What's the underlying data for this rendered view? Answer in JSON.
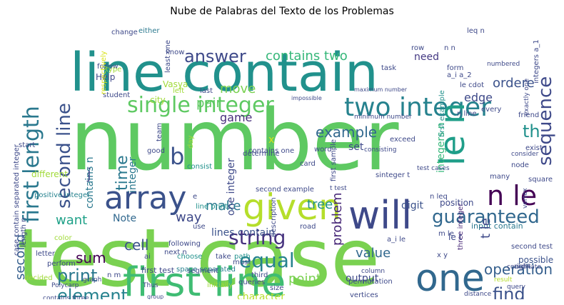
{
  "title": "Nube de Palabras del Texto de los Problemas",
  "words": [
    {
      "text": "number",
      "color": "#5ec962"
    },
    {
      "text": "test case",
      "color": "#7ad151"
    },
    {
      "text": "line contain",
      "color": "#21918c"
    },
    {
      "text": "first line",
      "color": "#3fbc73"
    },
    {
      "text": "array",
      "color": "#3b528b"
    },
    {
      "text": "given",
      "color": "#b5de2b"
    },
    {
      "text": "one",
      "color": "#31688e"
    },
    {
      "text": "will",
      "color": "#3e4989"
    },
    {
      "text": "single integer",
      "color": "#5ec962"
    },
    {
      "text": "two integer",
      "color": "#26828e"
    },
    {
      "text": "le n",
      "color": "#1f9e89"
    },
    {
      "text": "n le",
      "color": "#440154"
    },
    {
      "text": "first length",
      "color": "#2a788e"
    },
    {
      "text": "second line",
      "color": "#3b528b"
    },
    {
      "text": "guaranteed",
      "color": "#31688e"
    },
    {
      "text": "string",
      "color": "#46327e"
    },
    {
      "text": "equal",
      "color": "#26828e"
    },
    {
      "text": "answer",
      "color": "#3e4989"
    },
    {
      "text": "contains two",
      "color": "#35b779"
    },
    {
      "text": "sequence",
      "color": "#3e4989"
    },
    {
      "text": "element",
      "color": "#26828e"
    },
    {
      "text": "print",
      "color": "#2a788e"
    },
    {
      "text": "find",
      "color": "#3b528b"
    },
    {
      "text": "operation",
      "color": "#355f8d"
    },
    {
      "text": "time",
      "color": "#2a788e"
    },
    {
      "text": "problem",
      "color": "#482878"
    },
    {
      "text": "example",
      "color": "#31688e"
    },
    {
      "text": "b",
      "color": "#3b528b"
    },
    {
      "text": "th",
      "color": "#21918c"
    },
    {
      "text": "cell",
      "color": "#3b528b"
    },
    {
      "text": "sum",
      "color": "#440154"
    },
    {
      "text": "tree",
      "color": "#21918c"
    },
    {
      "text": "pair",
      "color": "#5ec962"
    },
    {
      "text": "move",
      "color": "#7ad151"
    },
    {
      "text": "game",
      "color": "#472d7b"
    },
    {
      "text": "want",
      "color": "#1fa188"
    },
    {
      "text": "make",
      "color": "#2a788e"
    },
    {
      "text": "second",
      "color": "#355f8d"
    },
    {
      "text": "way",
      "color": "#3e4989"
    },
    {
      "text": "value",
      "color": "#31688e"
    },
    {
      "text": "point",
      "color": "#7ad151"
    },
    {
      "text": "integer n",
      "color": "#31688e"
    },
    {
      "text": "edge",
      "color": "#3e4989"
    },
    {
      "text": "ordere",
      "color": "#3b528b"
    },
    {
      "text": "need",
      "color": "#443983"
    },
    {
      "text": "set",
      "color": "#3e4989"
    },
    {
      "text": "integers n",
      "color": "#35b779"
    },
    {
      "text": "contains n",
      "color": "#2a788e"
    },
    {
      "text": "one integer",
      "color": "#3e4989"
    },
    {
      "text": "lines contain",
      "color": "#3b528b"
    },
    {
      "text": "character",
      "color": "#b5de2b"
    },
    {
      "text": "output",
      "color": "#3e4989"
    },
    {
      "text": "Note",
      "color": "#31688e"
    },
    {
      "text": "integer",
      "color": "#2a788e"
    },
    {
      "text": "digit",
      "color": "#3b528b"
    },
    {
      "text": "position",
      "color": "#3e4989"
    },
    {
      "text": "input contain",
      "color": "#2a788e"
    },
    {
      "text": "three integer",
      "color": "#482878"
    },
    {
      "text": "possible",
      "color": "#3b528b"
    },
    {
      "text": "second test",
      "color": "#3e4989"
    },
    {
      "text": "first test",
      "color": "#3e4989"
    },
    {
      "text": "space separated",
      "color": "#26828e"
    },
    {
      "text": "sinteger t",
      "color": "#3e4989"
    },
    {
      "text": "first sample",
      "color": "#3e4989"
    },
    {
      "text": "different",
      "color": "#a0da39"
    },
    {
      "text": "positive integer",
      "color": "#26828e"
    },
    {
      "text": "Help",
      "color": "#3e4989"
    },
    {
      "text": "city",
      "color": "#a0da39"
    },
    {
      "text": "Vasya",
      "color": "#a0da39"
    },
    {
      "text": "student",
      "color": "#3e4989"
    },
    {
      "text": "change",
      "color": "#3e4989"
    },
    {
      "text": "either",
      "color": "#2a788e"
    },
    {
      "text": "know",
      "color": "#3e4989"
    },
    {
      "text": "least one",
      "color": "#3e4989"
    },
    {
      "text": "follow",
      "color": "#3e4989"
    },
    {
      "text": "respectively",
      "color": "#d8e219"
    },
    {
      "text": "type",
      "color": "#a0da39"
    },
    {
      "text": "left",
      "color": "#a0da39"
    },
    {
      "text": "last",
      "color": "#3e4989"
    },
    {
      "text": "consist",
      "color": "#21918c"
    },
    {
      "text": "start",
      "color": "#3e4989"
    },
    {
      "text": "road",
      "color": "#3e4989"
    },
    {
      "text": "path",
      "color": "#21918c"
    },
    {
      "text": "following",
      "color": "#3e4989"
    },
    {
      "text": "choose",
      "color": "#21918c"
    },
    {
      "text": "segment",
      "color": "#3e4989"
    },
    {
      "text": "queries",
      "color": "#3e4989"
    },
    {
      "text": "initially",
      "color": "#a0da39"
    },
    {
      "text": "vertices",
      "color": "#3e4989"
    },
    {
      "text": "permutation",
      "color": "#3e4989"
    },
    {
      "text": "column",
      "color": "#3e4989"
    },
    {
      "text": "coordinate",
      "color": "#3e4989"
    },
    {
      "text": "result",
      "color": "#b5de2b"
    },
    {
      "text": "distance",
      "color": "#3e4989"
    },
    {
      "text": "query",
      "color": "#3e4989"
    },
    {
      "text": "size",
      "color": "#3e4989"
    },
    {
      "text": "third",
      "color": "#3e4989"
    },
    {
      "text": "must",
      "color": "#3e4989"
    },
    {
      "text": "take",
      "color": "#3e4989"
    },
    {
      "text": "right",
      "color": "#3e4989"
    },
    {
      "text": "square",
      "color": "#3e4989"
    },
    {
      "text": "exist",
      "color": "#3e4989"
    },
    {
      "text": "friend",
      "color": "#3e4989"
    },
    {
      "text": "minimum number",
      "color": "#3e4989"
    },
    {
      "text": "maximum number",
      "color": "#3e4989"
    },
    {
      "text": "determine",
      "color": "#3e4989"
    },
    {
      "text": "description",
      "color": "#3e4989"
    },
    {
      "text": "second example",
      "color": "#3e4989"
    },
    {
      "text": "first example",
      "color": "#21918c"
    },
    {
      "text": "impossible",
      "color": "#3e4989"
    },
    {
      "text": "exceed",
      "color": "#3e4989"
    },
    {
      "text": "consisting",
      "color": "#3e4989"
    },
    {
      "text": "word",
      "color": "#3e4989"
    },
    {
      "text": "card",
      "color": "#3e4989"
    },
    {
      "text": "team",
      "color": "#3e4989"
    },
    {
      "text": "good",
      "color": "#3e4989"
    },
    {
      "text": "day",
      "color": "#a0da39"
    },
    {
      "text": "letter",
      "color": "#3e4989"
    },
    {
      "text": "color",
      "color": "#a0da39"
    },
    {
      "text": "perform",
      "color": "#3e4989"
    },
    {
      "text": "graph",
      "color": "#3e4989"
    },
    {
      "text": "decided",
      "color": "#a0da39"
    },
    {
      "text": "Polycarp",
      "color": "#3e4989"
    },
    {
      "text": "Thus",
      "color": "#3e4989"
    },
    {
      "text": "group",
      "color": "#3e4989"
    },
    {
      "text": "many",
      "color": "#3e4989"
    },
    {
      "text": "node",
      "color": "#3e4989"
    },
    {
      "text": "vertex",
      "color": "#3e4989"
    },
    {
      "text": "every",
      "color": "#3e4989"
    },
    {
      "text": "consider",
      "color": "#3e4989"
    },
    {
      "text": "row",
      "color": "#3e4989"
    },
    {
      "text": "form",
      "color": "#3e4989"
    },
    {
      "text": "task",
      "color": "#3e4989"
    },
    {
      "text": "numbered",
      "color": "#3e4989"
    },
    {
      "text": "le cdot",
      "color": "#3e4989"
    },
    {
      "text": "n line",
      "color": "#3e4989"
    },
    {
      "text": "leq n",
      "color": "#3e4989"
    },
    {
      "text": "n leq",
      "color": "#3e4989"
    },
    {
      "text": "a_i a_2",
      "color": "#3e4989"
    },
    {
      "text": "n n",
      "color": "#3e4989"
    },
    {
      "text": "t le",
      "color": "#3e4989"
    },
    {
      "text": "le t",
      "color": "#3e4989"
    },
    {
      "text": "m le",
      "color": "#3e4989"
    },
    {
      "text": "x y",
      "color": "#3e4989"
    },
    {
      "text": "j",
      "color": "#3e4989"
    },
    {
      "text": "e",
      "color": "#3e4989"
    },
    {
      "text": "x",
      "color": "#d8e219"
    },
    {
      "text": "n m",
      "color": "#3e4989"
    },
    {
      "text": "next n",
      "color": "#3e4989"
    },
    {
      "text": "ai",
      "color": "#3e4989"
    },
    {
      "text": "use",
      "color": "#3e4989"
    },
    {
      "text": "a_i le",
      "color": "#3e4989"
    },
    {
      "text": "le a_i",
      "color": "#3e4989"
    },
    {
      "text": "cost",
      "color": "#3e4989"
    },
    {
      "text": "ldots a_n",
      "color": "#3e4989"
    },
    {
      "text": "line print",
      "color": "#21918c"
    },
    {
      "text": "contains three",
      "color": "#3e4989"
    },
    {
      "text": "contains one",
      "color": "#3e4989"
    },
    {
      "text": "integers a_1",
      "color": "#3e4989"
    },
    {
      "text": "exactly one",
      "color": "#3e4989"
    },
    {
      "text": "length n",
      "color": "#3e4989"
    },
    {
      "text": "t test",
      "color": "#3e4989"
    },
    {
      "text": "case contain separated integer",
      "color": "#3e4989"
    },
    {
      "text": "test cases",
      "color": "#3e4989"
    }
  ]
}
